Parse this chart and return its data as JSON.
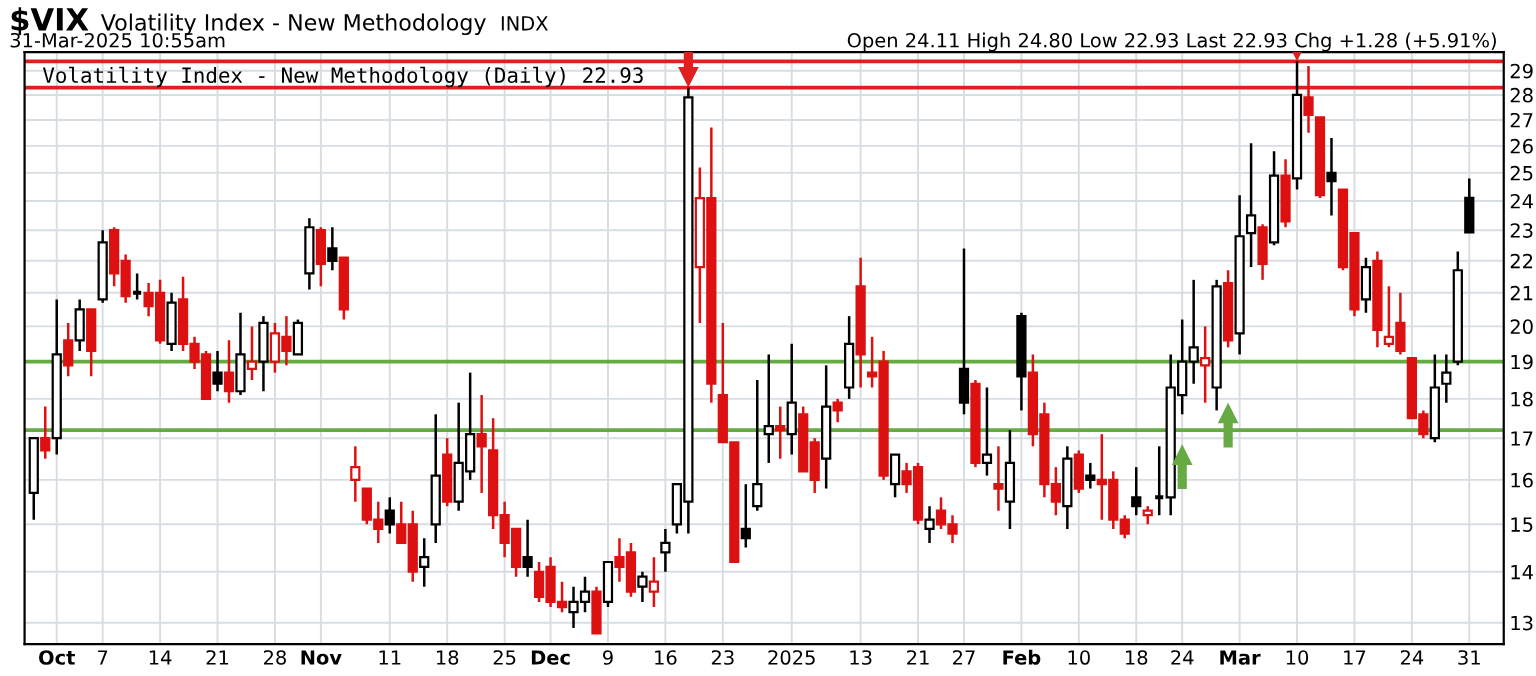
{
  "chart_data": {
    "type": "candlestick",
    "title": "$VIX",
    "subtitle": "Volatility Index - New Methodology",
    "annotations": [
      "INDX",
      "31-Mar-2025 10:55am",
      "Open 24.11 High 24.80 Low 22.93 Last 22.93 Chg +1.28 (+5.91%)",
      "Volatility Index - New Methodology (Daily) 22.93"
    ],
    "categories": [
      null,
      null,
      "Oct",
      null,
      null,
      null,
      "7",
      null,
      null,
      null,
      null,
      "14",
      null,
      null,
      null,
      null,
      "21",
      null,
      null,
      null,
      null,
      "28",
      null,
      null,
      null,
      "Nov",
      null,
      null,
      null,
      null,
      null,
      "11",
      null,
      null,
      null,
      null,
      "18",
      null,
      null,
      null,
      null,
      "25",
      null,
      null,
      null,
      "Dec",
      null,
      null,
      null,
      null,
      "9",
      null,
      null,
      null,
      null,
      "16",
      null,
      null,
      null,
      null,
      "23",
      null,
      null,
      null,
      null,
      null,
      "2025",
      null,
      null,
      null,
      null,
      null,
      "13",
      null,
      null,
      null,
      null,
      "21",
      null,
      null,
      null,
      "27",
      null,
      null,
      null,
      null,
      "Feb",
      null,
      null,
      null,
      null,
      "10",
      null,
      null,
      null,
      null,
      "18",
      null,
      null,
      null,
      "24",
      null,
      null,
      null,
      null,
      "Mar",
      null,
      null,
      null,
      null,
      "10",
      null,
      null,
      null,
      null,
      "17",
      null,
      null,
      null,
      null,
      "24",
      null,
      null,
      null,
      null,
      "31"
    ],
    "ohlc": [
      [
        15.7,
        17.0,
        15.1,
        17.0
      ],
      [
        17.0,
        17.8,
        16.5,
        16.7
      ],
      [
        17.0,
        20.8,
        16.6,
        19.2
      ],
      [
        19.6,
        20.1,
        18.6,
        18.9
      ],
      [
        19.6,
        20.8,
        19.3,
        20.5
      ],
      [
        20.5,
        20.5,
        18.6,
        19.3
      ],
      [
        20.8,
        23.0,
        20.7,
        22.6
      ],
      [
        23.0,
        23.1,
        21.2,
        21.6
      ],
      [
        22.0,
        22.2,
        20.7,
        20.9
      ],
      [
        21.0,
        21.6,
        20.8,
        21.0
      ],
      [
        21.0,
        21.3,
        20.3,
        20.6
      ],
      [
        21.0,
        21.4,
        19.5,
        19.6
      ],
      [
        19.5,
        21.0,
        19.3,
        20.7
      ],
      [
        20.8,
        21.5,
        19.3,
        19.5
      ],
      [
        19.5,
        19.7,
        18.8,
        19.0
      ],
      [
        19.2,
        19.3,
        18.0,
        18.0
      ],
      [
        18.7,
        19.3,
        18.2,
        18.4
      ],
      [
        18.7,
        19.6,
        17.9,
        18.2
      ],
      [
        18.2,
        20.4,
        18.1,
        19.2
      ],
      [
        18.8,
        20.0,
        18.5,
        19.0
      ],
      [
        19.0,
        20.3,
        18.2,
        20.1
      ],
      [
        19.0,
        20.1,
        18.7,
        19.8
      ],
      [
        19.7,
        20.3,
        18.9,
        19.3
      ],
      [
        19.2,
        20.2,
        19.2,
        20.1
      ],
      [
        21.6,
        23.4,
        21.1,
        23.1
      ],
      [
        23.0,
        23.1,
        21.2,
        21.9
      ],
      [
        22.4,
        23.1,
        21.7,
        22.0
      ],
      [
        22.1,
        22.1,
        20.2,
        20.5
      ],
      [
        16.0,
        16.8,
        15.5,
        16.3
      ],
      [
        15.8,
        15.8,
        15.0,
        15.1
      ],
      [
        15.1,
        15.5,
        14.6,
        14.9
      ],
      [
        15.3,
        15.6,
        14.8,
        15.0
      ],
      [
        15.0,
        15.5,
        14.6,
        14.6
      ],
      [
        15.0,
        15.3,
        13.8,
        14.0
      ],
      [
        14.1,
        14.7,
        13.7,
        14.3
      ],
      [
        15.0,
        17.6,
        14.6,
        16.1
      ],
      [
        16.6,
        17.0,
        15.4,
        15.5
      ],
      [
        15.5,
        17.9,
        15.3,
        16.4
      ],
      [
        16.2,
        18.7,
        16.0,
        17.1
      ],
      [
        17.1,
        18.1,
        15.7,
        16.8
      ],
      [
        16.7,
        17.5,
        14.9,
        15.2
      ],
      [
        15.2,
        15.5,
        14.3,
        14.6
      ],
      [
        14.9,
        14.9,
        13.9,
        14.1
      ],
      [
        14.3,
        15.1,
        13.9,
        14.1
      ],
      [
        14.0,
        14.2,
        13.4,
        13.5
      ],
      [
        14.1,
        14.3,
        13.3,
        13.4
      ],
      [
        13.4,
        13.8,
        13.2,
        13.3
      ],
      [
        13.2,
        13.7,
        12.9,
        13.4
      ],
      [
        13.4,
        13.9,
        13.2,
        13.6
      ],
      [
        13.6,
        13.7,
        12.8,
        12.8
      ],
      [
        13.4,
        14.2,
        13.3,
        14.2
      ],
      [
        14.3,
        14.7,
        13.8,
        14.1
      ],
      [
        14.4,
        14.6,
        13.5,
        13.6
      ],
      [
        13.7,
        14.0,
        13.4,
        13.9
      ],
      [
        13.6,
        14.3,
        13.3,
        13.8
      ],
      [
        14.4,
        14.9,
        14.0,
        14.6
      ],
      [
        15.0,
        15.9,
        14.8,
        15.9
      ],
      [
        15.5,
        28.3,
        14.8,
        27.9
      ],
      [
        21.8,
        25.2,
        20.1,
        24.1
      ],
      [
        24.1,
        26.7,
        17.9,
        18.4
      ],
      [
        18.1,
        20.1,
        16.9,
        16.9
      ],
      [
        16.9,
        16.9,
        14.2,
        14.2
      ],
      [
        14.9,
        15.9,
        14.5,
        14.7
      ],
      [
        15.4,
        18.5,
        15.3,
        15.9
      ],
      [
        17.1,
        19.2,
        16.4,
        17.3
      ],
      [
        17.3,
        17.8,
        16.5,
        17.2
      ],
      [
        17.1,
        19.5,
        16.6,
        17.9
      ],
      [
        17.6,
        17.8,
        16.2,
        16.2
      ],
      [
        16.9,
        17.0,
        15.7,
        16.0
      ],
      [
        16.5,
        18.9,
        15.8,
        17.8
      ],
      [
        17.9,
        18.0,
        17.4,
        17.7
      ],
      [
        18.3,
        20.3,
        18.0,
        19.5
      ],
      [
        21.2,
        22.1,
        18.3,
        19.2
      ],
      [
        18.7,
        19.7,
        18.3,
        18.6
      ],
      [
        19.0,
        19.3,
        16.0,
        16.1
      ],
      [
        15.9,
        16.6,
        15.6,
        16.6
      ],
      [
        16.2,
        16.4,
        15.7,
        15.9
      ],
      [
        16.3,
        16.4,
        15.0,
        15.1
      ],
      [
        14.9,
        15.4,
        14.6,
        15.1
      ],
      [
        15.3,
        15.6,
        14.9,
        15.0
      ],
      [
        15.0,
        15.2,
        14.6,
        14.8
      ],
      [
        18.8,
        22.4,
        17.6,
        17.9
      ],
      [
        18.4,
        18.5,
        16.3,
        16.4
      ],
      [
        16.4,
        18.3,
        16.1,
        16.6
      ],
      [
        15.9,
        16.8,
        15.3,
        15.8
      ],
      [
        15.5,
        17.2,
        14.9,
        16.4
      ],
      [
        20.3,
        20.4,
        17.7,
        18.6
      ],
      [
        18.7,
        19.2,
        16.8,
        17.1
      ],
      [
        17.6,
        17.9,
        15.6,
        15.9
      ],
      [
        15.9,
        16.3,
        15.2,
        15.5
      ],
      [
        15.4,
        16.8,
        14.9,
        16.5
      ],
      [
        16.6,
        16.7,
        15.7,
        15.8
      ],
      [
        16.1,
        16.4,
        15.8,
        16.0
      ],
      [
        16.0,
        17.1,
        15.1,
        15.9
      ],
      [
        16.0,
        16.2,
        14.9,
        15.1
      ],
      [
        15.1,
        15.2,
        14.7,
        14.8
      ],
      [
        15.6,
        16.3,
        15.2,
        15.4
      ],
      [
        15.2,
        15.4,
        15.0,
        15.3
      ],
      [
        15.6,
        16.8,
        15.2,
        15.6
      ],
      [
        15.6,
        19.2,
        15.2,
        18.3
      ],
      [
        18.1,
        20.2,
        17.6,
        19.0
      ],
      [
        19.0,
        21.4,
        18.4,
        19.4
      ],
      [
        18.9,
        20.0,
        17.9,
        19.1
      ],
      [
        18.3,
        21.4,
        17.7,
        21.2
      ],
      [
        21.3,
        21.7,
        19.4,
        19.6
      ],
      [
        19.8,
        24.2,
        19.2,
        22.8
      ],
      [
        22.9,
        26.1,
        21.8,
        23.5
      ],
      [
        23.1,
        23.2,
        21.4,
        21.9
      ],
      [
        22.6,
        25.8,
        22.5,
        24.9
      ],
      [
        24.9,
        25.5,
        23.1,
        23.3
      ],
      [
        24.8,
        29.4,
        24.4,
        28.0
      ],
      [
        27.9,
        29.2,
        26.5,
        27.2
      ],
      [
        27.1,
        27.1,
        24.1,
        24.2
      ],
      [
        25.0,
        26.3,
        23.5,
        24.7
      ],
      [
        24.4,
        24.4,
        21.7,
        21.8
      ],
      [
        22.9,
        22.9,
        20.3,
        20.5
      ],
      [
        20.8,
        22.1,
        20.4,
        21.8
      ],
      [
        22.0,
        22.3,
        19.4,
        19.9
      ],
      [
        19.5,
        21.2,
        19.4,
        19.7
      ],
      [
        20.1,
        21.0,
        19.2,
        19.3
      ],
      [
        19.1,
        19.1,
        17.5,
        17.5
      ],
      [
        17.6,
        17.7,
        17.0,
        17.1
      ],
      [
        17.0,
        19.2,
        16.9,
        18.3
      ],
      [
        18.4,
        19.2,
        17.9,
        18.7
      ],
      [
        19.0,
        22.3,
        18.9,
        21.7
      ],
      [
        24.11,
        24.8,
        22.93,
        22.93
      ]
    ],
    "colors": [
      "#000000",
      "#dd1111",
      "#000000",
      "#dd1111",
      "#000000",
      "#dd1111",
      "#000000",
      "#dd1111",
      "#dd1111",
      "#000000",
      "#dd1111",
      "#dd1111",
      "#000000",
      "#dd1111",
      "#dd1111",
      "#dd1111",
      "#000000",
      "#dd1111",
      "#000000",
      "#dd1111",
      "#000000",
      "#dd1111",
      "#dd1111",
      "#000000",
      "#000000",
      "#dd1111",
      "#000000",
      "#dd1111",
      "#dd1111",
      "#dd1111",
      "#dd1111",
      "#000000",
      "#dd1111",
      "#dd1111",
      "#000000",
      "#000000",
      "#dd1111",
      "#000000",
      "#000000",
      "#dd1111",
      "#dd1111",
      "#dd1111",
      "#dd1111",
      "#000000",
      "#dd1111",
      "#dd1111",
      "#dd1111",
      "#000000",
      "#000000",
      "#dd1111",
      "#000000",
      "#dd1111",
      "#dd1111",
      "#000000",
      "#dd1111",
      "#000000",
      "#000000",
      "#000000",
      "#dd1111",
      "#dd1111",
      "#dd1111",
      "#dd1111",
      "#000000",
      "#000000",
      "#000000",
      "#dd1111",
      "#000000",
      "#dd1111",
      "#dd1111",
      "#000000",
      "#dd1111",
      "#000000",
      "#dd1111",
      "#dd1111",
      "#dd1111",
      "#000000",
      "#dd1111",
      "#dd1111",
      "#000000",
      "#dd1111",
      "#dd1111",
      "#000000",
      "#dd1111",
      "#000000",
      "#dd1111",
      "#000000",
      "#000000",
      "#dd1111",
      "#dd1111",
      "#dd1111",
      "#000000",
      "#dd1111",
      "#000000",
      "#dd1111",
      "#dd1111",
      "#dd1111",
      "#000000",
      "#dd1111",
      "#000000",
      "#000000",
      "#000000",
      "#000000",
      "#dd1111",
      "#000000",
      "#dd1111",
      "#000000",
      "#000000",
      "#dd1111",
      "#000000",
      "#dd1111",
      "#000000",
      "#dd1111",
      "#dd1111",
      "#000000",
      "#dd1111",
      "#dd1111",
      "#000000",
      "#dd1111",
      "#dd1111",
      "#dd1111",
      "#dd1111",
      "#dd1111",
      "#000000",
      "#000000",
      "#000000",
      "#000000"
    ],
    "log": true,
    "ylim": [
      12.6,
      29.8
    ],
    "yticks": [
      13,
      14,
      15,
      16,
      17,
      18,
      19,
      20,
      21,
      22,
      23,
      24,
      25,
      26,
      27,
      28,
      29
    ],
    "grid": true,
    "ref_lines": [
      {
        "axis": "y",
        "value": 29.4,
        "color": "#e02020"
      },
      {
        "axis": "y",
        "value": 28.3,
        "color": "#e02020"
      },
      {
        "axis": "y",
        "value": 19.0,
        "color": "#66aa44"
      },
      {
        "axis": "y",
        "value": 17.2,
        "color": "#66aa44"
      }
    ]
  }
}
